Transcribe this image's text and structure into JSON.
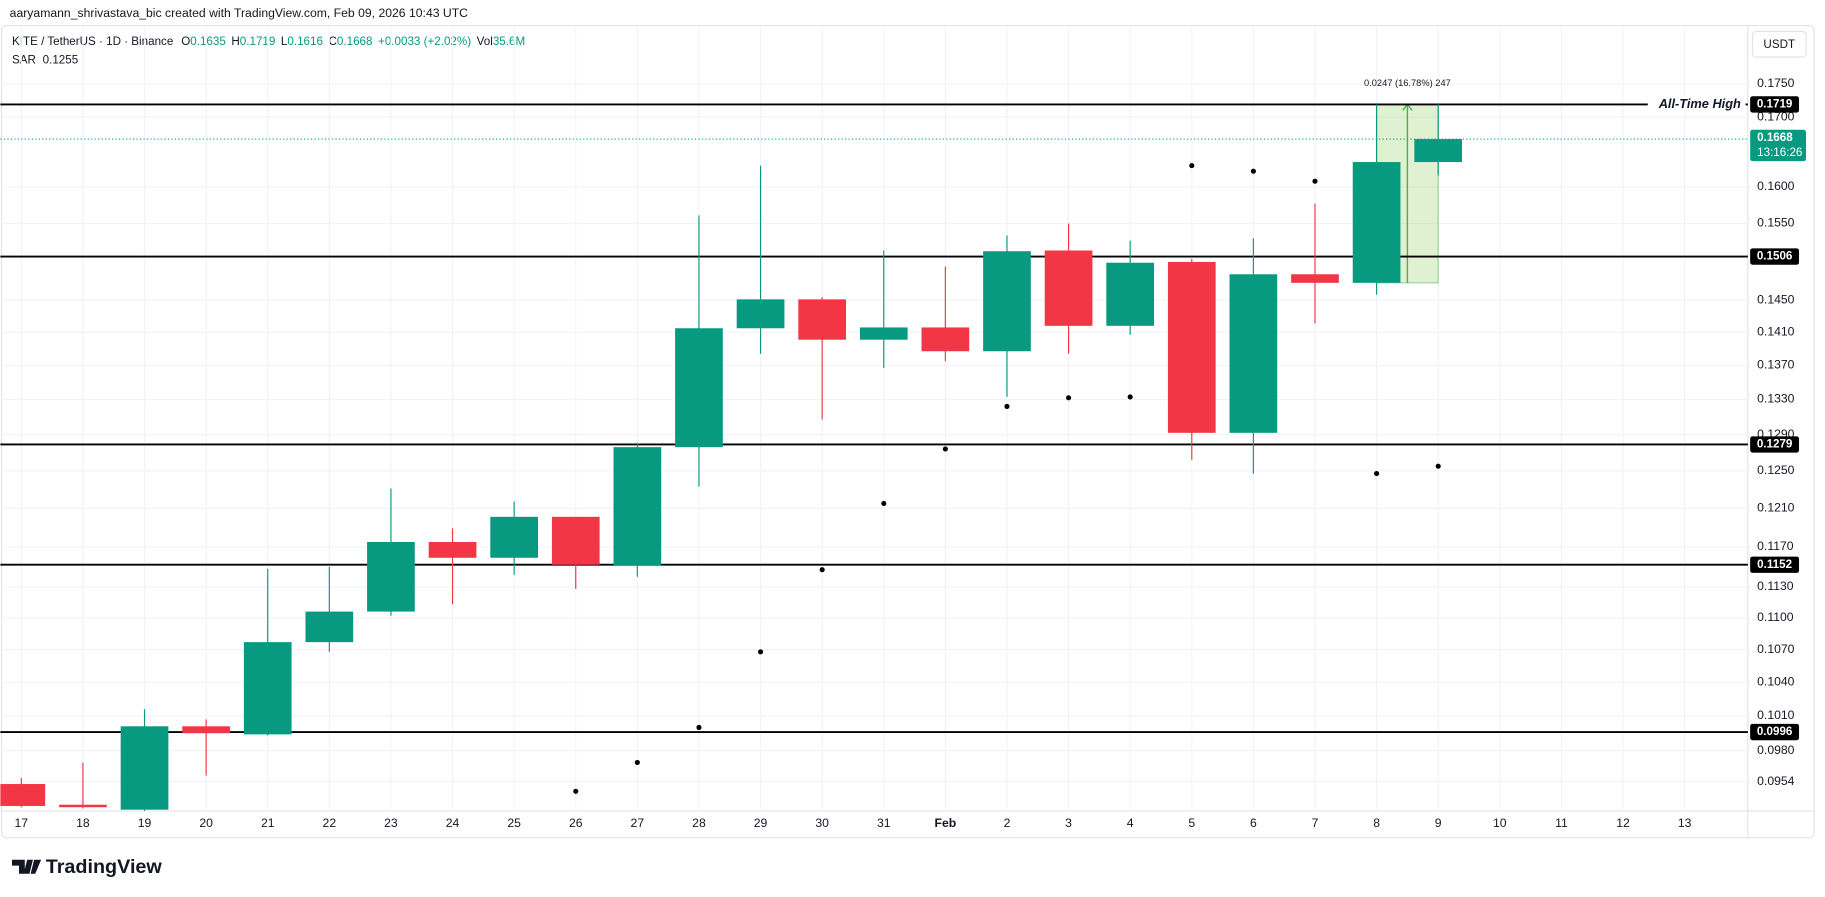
{
  "page": {
    "header": "aaryamann_shrivastava_bic created with TradingView.com, Feb 09, 2026 10:43 UTC",
    "currency": "USDT",
    "logo": "TradingView"
  },
  "chart_data": {
    "type": "candlestick",
    "title": "KITE / TetherUS · 1D · Binance",
    "legend_labels": [
      "O",
      "H",
      "L",
      "C"
    ],
    "change": "+0.0033 (+2.02%)",
    "volume_label": "Vol",
    "volume": "35.6M",
    "up_color": "#089981",
    "down_color": "#f23645",
    "log_scale": true,
    "grid": true,
    "categories": [
      "17",
      "18",
      "19",
      "20",
      "21",
      "22",
      "23",
      "24",
      "25",
      "26",
      "27",
      "28",
      "29",
      "30",
      "31",
      "Feb",
      "2",
      "3",
      "4",
      "5",
      "6",
      "7",
      "8",
      "9",
      "10",
      "11",
      "12",
      "13"
    ],
    "open": [
      0.0952,
      0.0935,
      0.0931,
      0.1001,
      0.0994,
      0.1077,
      0.1106,
      0.1175,
      0.1159,
      0.1201,
      0.1151,
      0.1276,
      0.1415,
      0.1451,
      0.1401,
      0.1416,
      0.1387,
      0.1514,
      0.1418,
      0.1499,
      0.1292,
      0.1483,
      0.1472,
      0.1635,
      null,
      null,
      null,
      null
    ],
    "high": [
      0.0957,
      0.097,
      0.1016,
      0.1007,
      0.1148,
      0.115,
      0.1231,
      0.1189,
      0.1217,
      0.1201,
      0.1281,
      0.1561,
      0.163,
      0.1454,
      0.1514,
      0.1493,
      0.1534,
      0.155,
      0.1527,
      0.1503,
      0.153,
      0.1577,
      0.1719,
      0.1719,
      null,
      null,
      null,
      null
    ],
    "low": [
      0.0933,
      0.0932,
      0.0925,
      0.0959,
      0.0993,
      0.1068,
      0.1102,
      0.1113,
      0.1142,
      0.1128,
      0.114,
      0.1233,
      0.1384,
      0.1307,
      0.1367,
      0.1375,
      0.1333,
      0.1384,
      0.1407,
      0.1262,
      0.1247,
      0.1421,
      0.1457,
      0.1616,
      null,
      null,
      null,
      null
    ],
    "close": [
      0.0934,
      0.0933,
      0.1001,
      0.0995,
      0.1077,
      0.1106,
      0.1175,
      0.1159,
      0.1201,
      0.1152,
      0.1276,
      0.1415,
      0.1451,
      0.1401,
      0.1416,
      0.1387,
      0.1513,
      0.1418,
      0.1498,
      0.1292,
      0.1483,
      0.1472,
      0.1635,
      0.1668,
      null,
      null,
      null,
      null
    ],
    "indicator": {
      "name": "SAR",
      "color": "#000000",
      "values": [
        null,
        null,
        null,
        null,
        null,
        null,
        null,
        null,
        null,
        0.0946,
        0.097,
        0.1,
        0.1068,
        0.1147,
        0.1215,
        0.1274,
        0.1322,
        0.1332,
        0.1333,
        0.163,
        0.1622,
        0.1608,
        0.1247,
        0.1255,
        null,
        null,
        null,
        null
      ]
    },
    "ylim": [
      0.093,
      0.1841
    ],
    "yticks": [
      {
        "value": 0.175,
        "label": "0.1750"
      },
      {
        "value": 0.17,
        "label": "0.1700"
      },
      {
        "value": 0.16,
        "label": "0.1600"
      },
      {
        "value": 0.155,
        "label": "0.1550"
      },
      {
        "value": 0.145,
        "label": "0.1450"
      },
      {
        "value": 0.141,
        "label": "0.1410"
      },
      {
        "value": 0.137,
        "label": "0.1370"
      },
      {
        "value": 0.133,
        "label": "0.1330"
      },
      {
        "value": 0.129,
        "label": "0.1290"
      },
      {
        "value": 0.125,
        "label": "0.1250"
      },
      {
        "value": 0.121,
        "label": "0.1210"
      },
      {
        "value": 0.117,
        "label": "0.1170"
      },
      {
        "value": 0.113,
        "label": "0.1130"
      },
      {
        "value": 0.11,
        "label": "0.1100"
      },
      {
        "value": 0.107,
        "label": "0.1070"
      },
      {
        "value": 0.104,
        "label": "0.1040"
      },
      {
        "value": 0.101,
        "label": "0.1010"
      },
      {
        "value": 0.098,
        "label": "0.0980"
      },
      0.0954
    ],
    "levels": [
      {
        "value": 0.1719,
        "annotation": "All-Time High"
      },
      {
        "value": 0.1506
      },
      {
        "value": 0.1279
      },
      {
        "value": 0.1152
      },
      {
        "value": 0.0996
      }
    ],
    "countdown": "13:16:26",
    "measure": {
      "start": "8",
      "end": "9",
      "low": 0.1472,
      "high": 0.1719,
      "label": "0.0247 (16.78%) 247"
    }
  }
}
